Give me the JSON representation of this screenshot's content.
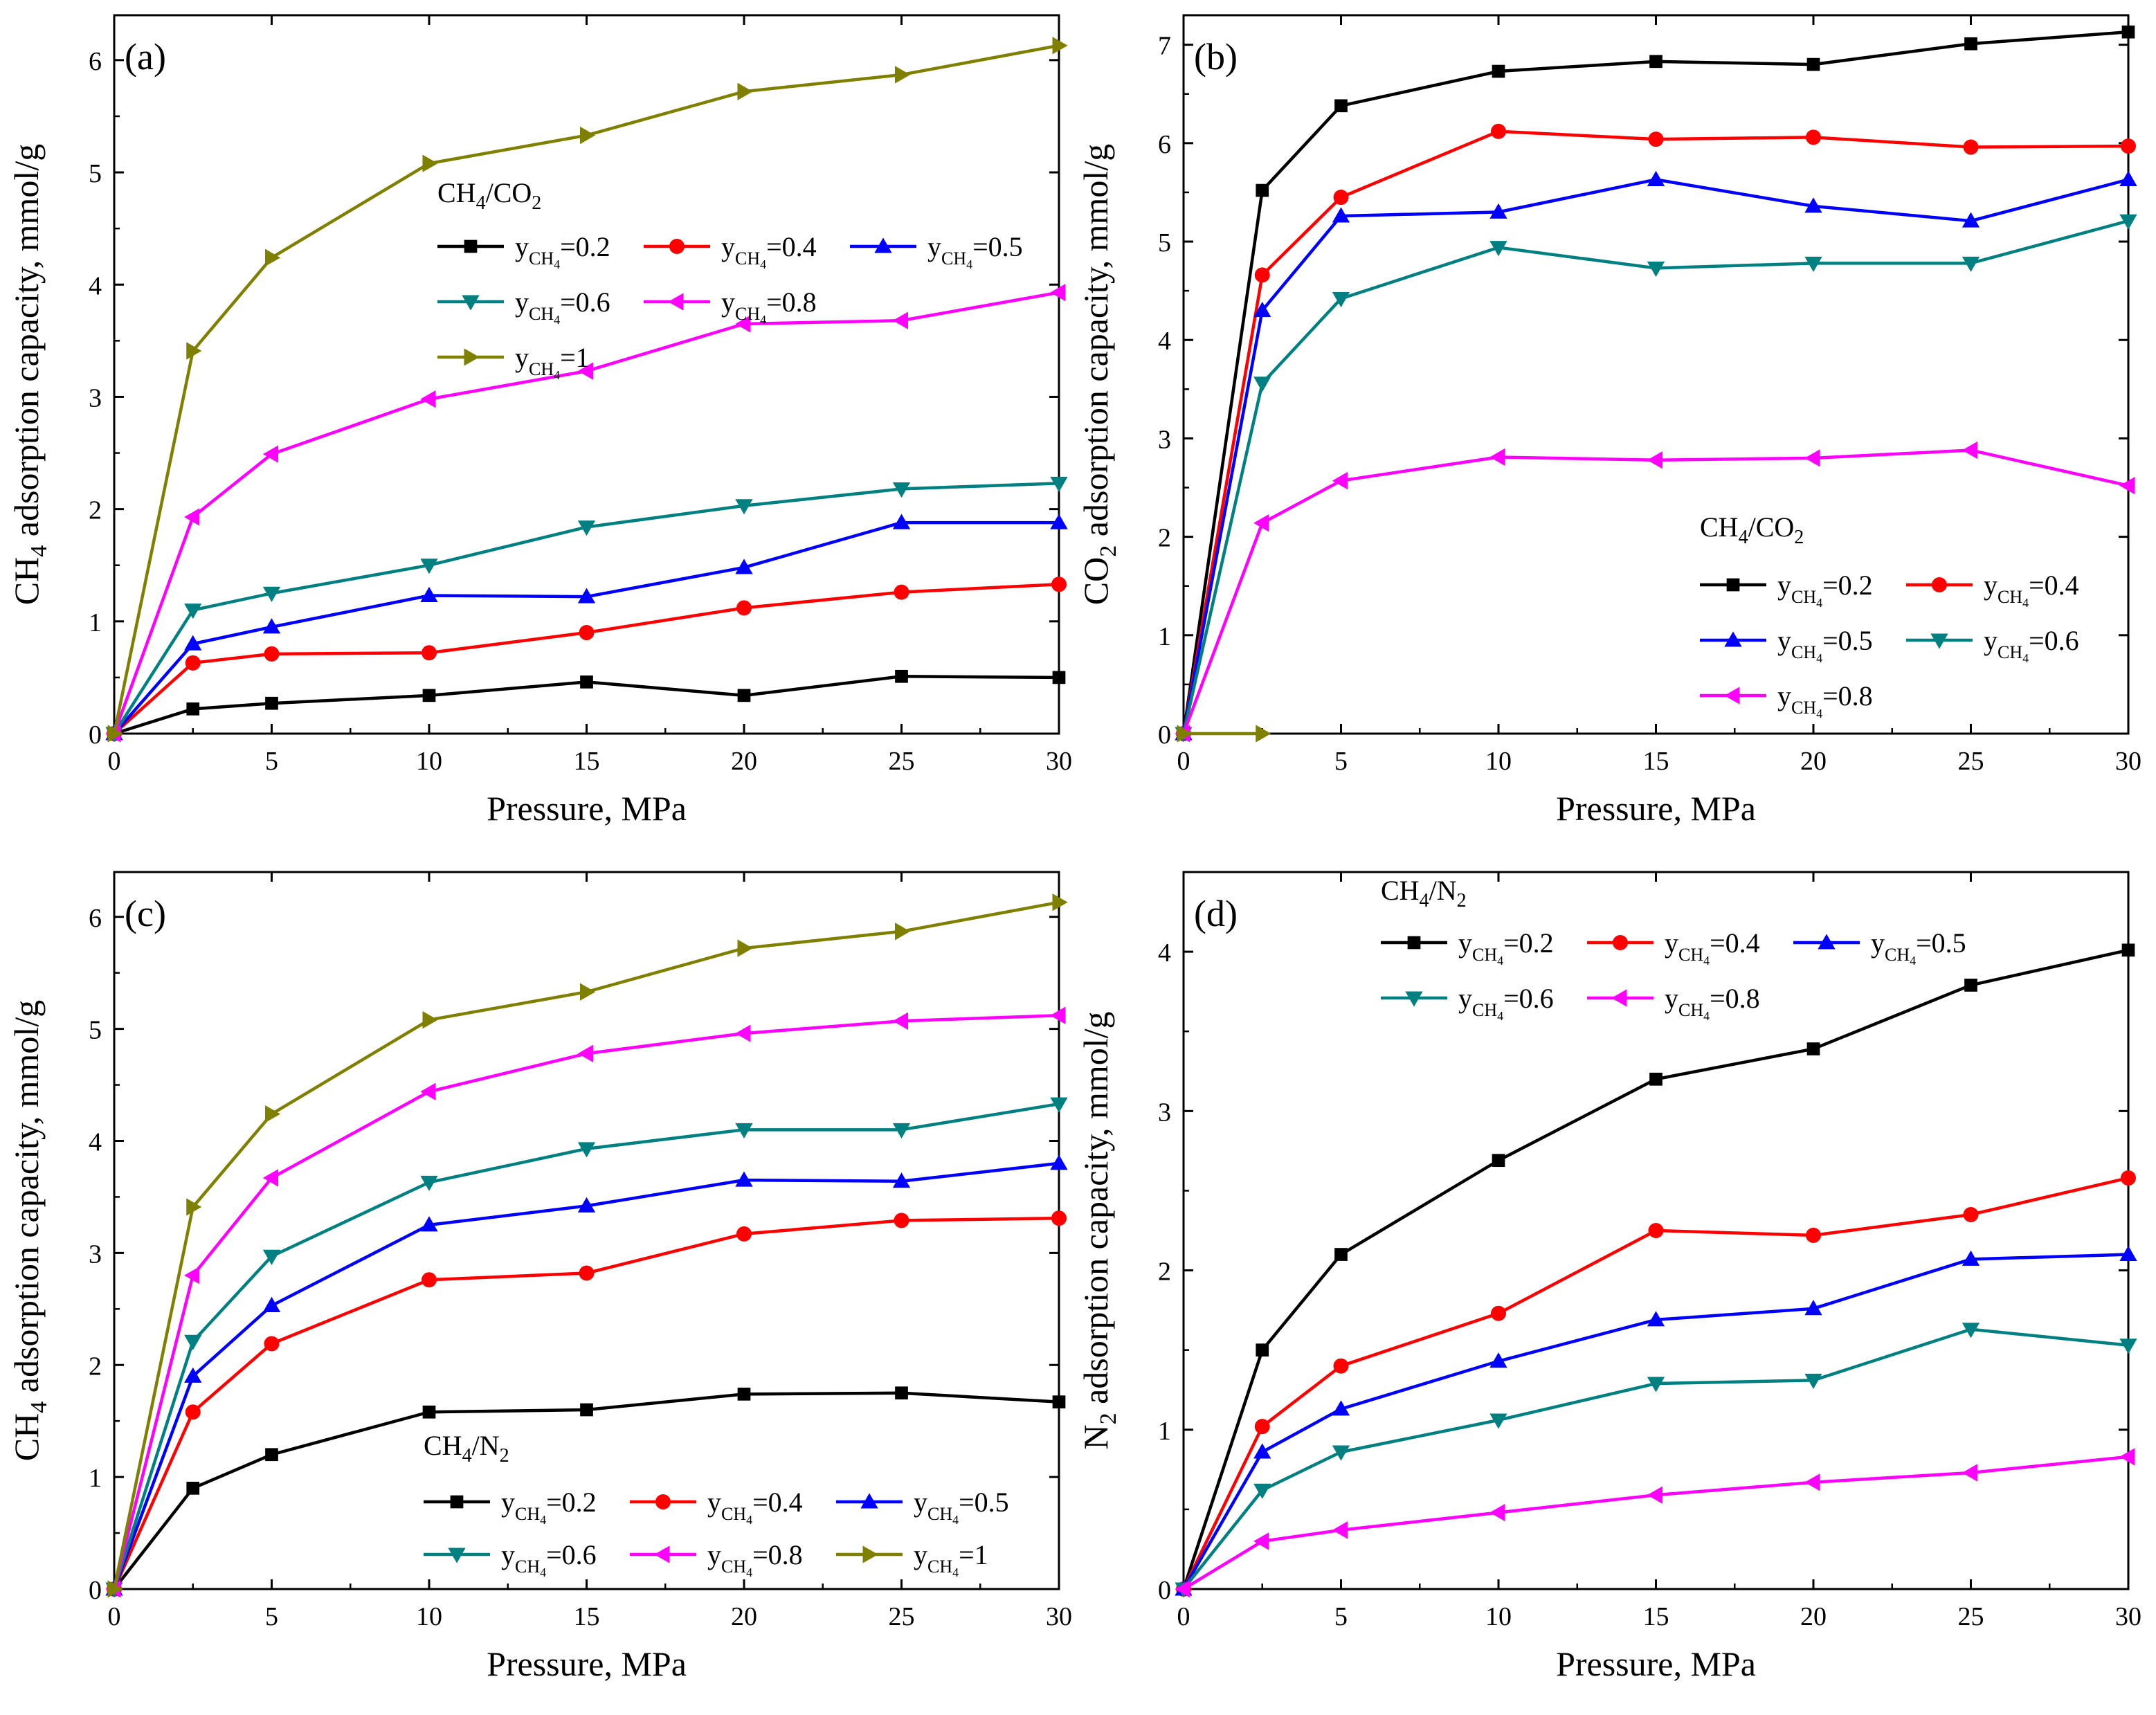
{
  "figure": {
    "panels": [
      "a",
      "b",
      "c",
      "d"
    ]
  },
  "chart_data": [
    {
      "id": "a",
      "type": "line",
      "panel_label": "(a)",
      "mixture": "CH4/CO2",
      "xlabel": "Pressure, MPa",
      "ylabel": "CH4 adsorption capacity, mmol/g",
      "ylabel_species": "CH",
      "ylabel_species_sub": "4",
      "ylabel_rest": " adsorption capacity, mmol/g",
      "xlim": [
        0,
        30
      ],
      "ylim": [
        0,
        6.4
      ],
      "xticks": [
        0,
        5,
        10,
        15,
        20,
        25,
        30
      ],
      "yticks": [
        0,
        1,
        2,
        3,
        4,
        5,
        6
      ],
      "legend_title": {
        "main": "CH",
        "sub1": "4",
        "mid": "/CO",
        "sub2": "2"
      },
      "legend_position": "upper-middle",
      "x": [
        0,
        2.5,
        5,
        10,
        15,
        20,
        25,
        30
      ],
      "series": [
        {
          "name": "yCH4=0.2",
          "label_value": "=0.2",
          "color": "#000000",
          "marker": "square",
          "values": [
            0,
            0.22,
            0.27,
            0.34,
            0.46,
            0.34,
            0.51,
            0.5
          ]
        },
        {
          "name": "yCH4=0.4",
          "label_value": "=0.4",
          "color": "#ff0000",
          "marker": "circle",
          "values": [
            0,
            0.63,
            0.71,
            0.72,
            0.9,
            1.12,
            1.26,
            1.33
          ]
        },
        {
          "name": "yCH4=0.5",
          "label_value": "=0.5",
          "color": "#0000ff",
          "marker": "triangle-up",
          "values": [
            0,
            0.8,
            0.95,
            1.23,
            1.22,
            1.48,
            1.88,
            1.88
          ]
        },
        {
          "name": "yCH4=0.6",
          "label_value": "=0.6",
          "color": "#008080",
          "marker": "triangle-down",
          "values": [
            0,
            1.1,
            1.25,
            1.5,
            1.84,
            2.03,
            2.18,
            2.23
          ]
        },
        {
          "name": "yCH4=0.8",
          "label_value": "=0.8",
          "color": "#ff00ff",
          "marker": "triangle-left",
          "values": [
            0,
            1.93,
            2.49,
            2.98,
            3.23,
            3.65,
            3.68,
            3.93
          ]
        },
        {
          "name": "yCH4=1",
          "label_value": "=1",
          "color": "#808000",
          "marker": "triangle-right",
          "values": [
            0,
            3.41,
            4.24,
            5.08,
            5.33,
            5.72,
            5.87,
            6.13
          ]
        }
      ]
    },
    {
      "id": "b",
      "type": "line",
      "panel_label": "(b)",
      "mixture": "CH4/CO2",
      "xlabel": "Pressure, MPa",
      "ylabel": "CO2 adsorption capacity, mmol/g",
      "ylabel_species": "CO",
      "ylabel_species_sub": "2",
      "ylabel_rest": " adsorption capacity, mmol/g",
      "xlim": [
        0,
        30
      ],
      "ylim": [
        0,
        7.3
      ],
      "xticks": [
        0,
        5,
        10,
        15,
        20,
        25,
        30
      ],
      "yticks": [
        0,
        1,
        2,
        3,
        4,
        5,
        6,
        7
      ],
      "legend_title": {
        "main": "CH",
        "sub1": "4",
        "mid": "/CO",
        "sub2": "2"
      },
      "legend_position": "lower-right",
      "x": [
        0,
        2.5,
        5,
        10,
        15,
        20,
        25,
        30
      ],
      "series": [
        {
          "name": "yCH4=0.2",
          "label_value": "=0.2",
          "color": "#000000",
          "marker": "square",
          "values": [
            0,
            5.52,
            6.38,
            6.73,
            6.83,
            6.8,
            7.01,
            7.13
          ]
        },
        {
          "name": "yCH4=0.4",
          "label_value": "=0.4",
          "color": "#ff0000",
          "marker": "circle",
          "values": [
            0,
            4.66,
            5.45,
            6.12,
            6.04,
            6.06,
            5.96,
            5.97
          ]
        },
        {
          "name": "yCH4=0.5",
          "label_value": "=0.5",
          "color": "#0000ff",
          "marker": "triangle-up",
          "values": [
            0,
            4.3,
            5.26,
            5.3,
            5.63,
            5.36,
            5.21,
            5.63
          ]
        },
        {
          "name": "yCH4=0.6",
          "label_value": "=0.6",
          "color": "#008080",
          "marker": "triangle-down",
          "values": [
            0,
            3.56,
            4.42,
            4.94,
            4.73,
            4.78,
            4.78,
            5.21
          ]
        },
        {
          "name": "yCH4=0.8",
          "label_value": "=0.8",
          "color": "#ff00ff",
          "marker": "triangle-left",
          "values": [
            0,
            2.14,
            2.57,
            2.81,
            2.78,
            2.8,
            2.88,
            2.52
          ]
        },
        {
          "name": "yCH4=1",
          "label_value": "=1",
          "color": "#808000",
          "marker": "triangle-right",
          "in_legend": false,
          "x": [
            0,
            2.5
          ],
          "values": [
            0,
            0
          ]
        }
      ]
    },
    {
      "id": "c",
      "type": "line",
      "panel_label": "(c)",
      "mixture": "CH4/N2",
      "xlabel": "Pressure, MPa",
      "ylabel": "CH4 adsorption capacity, mmol/g",
      "ylabel_species": "CH",
      "ylabel_species_sub": "4",
      "ylabel_rest": " adsorption capacity, mmol/g",
      "xlim": [
        0,
        30
      ],
      "ylim": [
        0,
        6.4
      ],
      "xticks": [
        0,
        5,
        10,
        15,
        20,
        25,
        30
      ],
      "yticks": [
        0,
        1,
        2,
        3,
        4,
        5,
        6
      ],
      "legend_title": {
        "main": "CH",
        "sub1": "4",
        "mid": "/N",
        "sub2": "2"
      },
      "legend_position": "lower-right",
      "x": [
        0,
        2.5,
        5,
        10,
        15,
        20,
        25,
        30
      ],
      "series": [
        {
          "name": "yCH4=0.2",
          "label_value": "=0.2",
          "color": "#000000",
          "marker": "square",
          "values": [
            0,
            0.9,
            1.2,
            1.58,
            1.6,
            1.74,
            1.75,
            1.67
          ]
        },
        {
          "name": "yCH4=0.4",
          "label_value": "=0.4",
          "color": "#ff0000",
          "marker": "circle",
          "values": [
            0,
            1.58,
            2.19,
            2.76,
            2.82,
            3.17,
            3.29,
            3.31
          ]
        },
        {
          "name": "yCH4=0.5",
          "label_value": "=0.5",
          "color": "#0000ff",
          "marker": "triangle-up",
          "values": [
            0,
            1.9,
            2.53,
            3.25,
            3.42,
            3.65,
            3.64,
            3.8
          ]
        },
        {
          "name": "yCH4=0.6",
          "label_value": "=0.6",
          "color": "#008080",
          "marker": "triangle-down",
          "values": [
            0,
            2.21,
            2.97,
            3.63,
            3.93,
            4.1,
            4.1,
            4.33
          ]
        },
        {
          "name": "yCH4=0.8",
          "label_value": "=0.8",
          "color": "#ff00ff",
          "marker": "triangle-left",
          "values": [
            0,
            2.8,
            3.67,
            4.44,
            4.78,
            4.96,
            5.07,
            5.12
          ]
        },
        {
          "name": "yCH4=1",
          "label_value": "=1",
          "color": "#808000",
          "marker": "triangle-right",
          "values": [
            0,
            3.41,
            4.24,
            5.08,
            5.33,
            5.72,
            5.87,
            6.13
          ]
        }
      ]
    },
    {
      "id": "d",
      "type": "line",
      "panel_label": "(d)",
      "mixture": "CH4/N2",
      "xlabel": "Pressure, MPa",
      "ylabel": "N2 adsorption capacity, mmol/g",
      "ylabel_species": "N",
      "ylabel_species_sub": "2",
      "ylabel_rest": " adsorption capacity, mmol/g",
      "xlim": [
        0,
        30
      ],
      "ylim": [
        0,
        4.5
      ],
      "xticks": [
        0,
        5,
        10,
        15,
        20,
        25,
        30
      ],
      "yticks": [
        0,
        1,
        2,
        3,
        4
      ],
      "legend_title": {
        "main": "CH",
        "sub1": "4",
        "mid": "/N",
        "sub2": "2"
      },
      "legend_position": "top-left",
      "x": [
        0,
        2.5,
        5,
        10,
        15,
        20,
        25,
        30
      ],
      "series": [
        {
          "name": "yCH4=0.2",
          "label_value": "=0.2",
          "color": "#000000",
          "marker": "square",
          "values": [
            0,
            1.5,
            2.1,
            2.69,
            3.2,
            3.39,
            3.79,
            4.01
          ]
        },
        {
          "name": "yCH4=0.4",
          "label_value": "=0.4",
          "color": "#ff0000",
          "marker": "circle",
          "values": [
            0,
            1.02,
            1.4,
            1.73,
            2.25,
            2.22,
            2.35,
            2.58
          ]
        },
        {
          "name": "yCH4=0.5",
          "label_value": "=0.5",
          "color": "#0000ff",
          "marker": "triangle-up",
          "values": [
            0,
            0.86,
            1.13,
            1.43,
            1.69,
            1.76,
            2.07,
            2.1
          ]
        },
        {
          "name": "yCH4=0.6",
          "label_value": "=0.6",
          "color": "#008080",
          "marker": "triangle-down",
          "values": [
            0,
            0.62,
            0.86,
            1.06,
            1.29,
            1.31,
            1.63,
            1.53
          ]
        },
        {
          "name": "yCH4=0.8",
          "label_value": "=0.8",
          "color": "#ff00ff",
          "marker": "triangle-left",
          "values": [
            0,
            0.3,
            0.37,
            0.48,
            0.59,
            0.67,
            0.73,
            0.83
          ]
        }
      ]
    }
  ]
}
